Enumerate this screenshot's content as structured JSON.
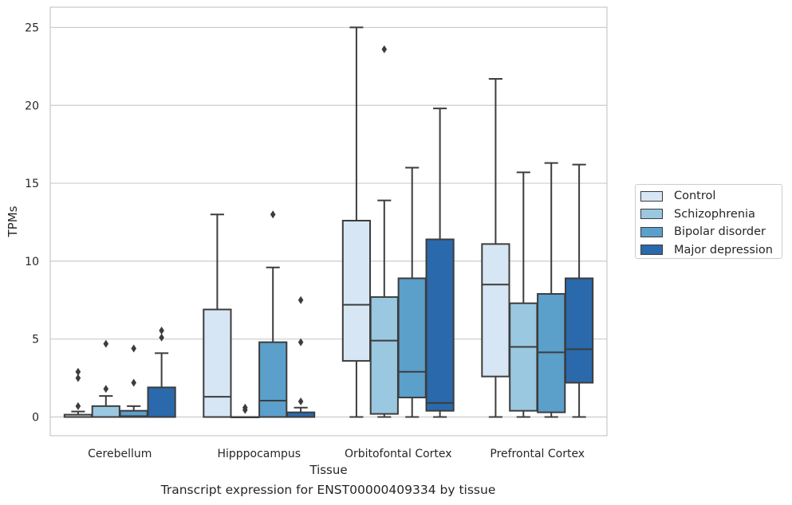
{
  "chart_data": {
    "type": "boxplot",
    "caption": "Transcript expression for ENST00000409334 by tissue",
    "xlabel": "Tissue",
    "ylabel": "TPMs",
    "ylim": [
      -1.2,
      26.3
    ],
    "yticks": [
      0,
      5,
      10,
      15,
      20,
      25
    ],
    "grid": "horizontal",
    "legend_position": "right",
    "categories": [
      "Cerebellum",
      "Hipppocampus",
      "Orbitofontal Cortex",
      "Prefrontal Cortex"
    ],
    "series": [
      {
        "name": "Control",
        "color": "#d6e6f4",
        "boxes": [
          {
            "whislo": 0,
            "q1": 0,
            "med": 0,
            "q3": 0.15,
            "whishi": 0.35,
            "fliers": [
              0.7,
              2.5,
              2.9
            ]
          },
          {
            "whislo": 0,
            "q1": 0,
            "med": 1.3,
            "q3": 6.9,
            "whishi": 13.0,
            "fliers": []
          },
          {
            "whislo": 0,
            "q1": 3.6,
            "med": 7.2,
            "q3": 12.6,
            "whishi": 25.0,
            "fliers": []
          },
          {
            "whislo": 0,
            "q1": 2.6,
            "med": 8.5,
            "q3": 11.1,
            "whishi": 21.7,
            "fliers": []
          }
        ]
      },
      {
        "name": "Schizophrenia",
        "color": "#9ac8e0",
        "boxes": [
          {
            "whislo": 0,
            "q1": 0,
            "med": 0,
            "q3": 0.7,
            "whishi": 1.35,
            "fliers": [
              1.8,
              4.7
            ]
          },
          {
            "whislo": 0,
            "q1": 0,
            "med": 0,
            "q3": 0,
            "whishi": 0,
            "fliers": [
              0.45,
              0.6
            ]
          },
          {
            "whislo": 0,
            "q1": 0.2,
            "med": 4.9,
            "q3": 7.7,
            "whishi": 13.9,
            "fliers": [
              23.6
            ]
          },
          {
            "whislo": 0,
            "q1": 0.4,
            "med": 4.5,
            "q3": 7.3,
            "whishi": 15.7,
            "fliers": []
          }
        ]
      },
      {
        "name": "Bipolar disorder",
        "color": "#5b9fcb",
        "boxes": [
          {
            "whislo": 0,
            "q1": 0,
            "med": 0.05,
            "q3": 0.4,
            "whishi": 0.7,
            "fliers": [
              2.2,
              4.4
            ]
          },
          {
            "whislo": 0,
            "q1": 0,
            "med": 1.05,
            "q3": 4.8,
            "whishi": 9.6,
            "fliers": [
              13.0
            ]
          },
          {
            "whislo": 0,
            "q1": 1.25,
            "med": 2.9,
            "q3": 8.9,
            "whishi": 16.0,
            "fliers": []
          },
          {
            "whislo": 0,
            "q1": 0.3,
            "med": 4.15,
            "q3": 7.9,
            "whishi": 16.3,
            "fliers": []
          }
        ]
      },
      {
        "name": "Major depression",
        "color": "#2a69ab",
        "boxes": [
          {
            "whislo": 0,
            "q1": 0,
            "med": 0,
            "q3": 1.9,
            "whishi": 4.1,
            "fliers": [
              5.1,
              5.55
            ]
          },
          {
            "whislo": 0,
            "q1": 0,
            "med": 0,
            "q3": 0.3,
            "whishi": 0.6,
            "fliers": [
              1.0,
              4.8,
              7.5
            ]
          },
          {
            "whislo": 0,
            "q1": 0.4,
            "med": 0.9,
            "q3": 11.4,
            "whishi": 19.8,
            "fliers": []
          },
          {
            "whislo": 0,
            "q1": 2.2,
            "med": 4.35,
            "q3": 8.9,
            "whishi": 16.2,
            "fliers": []
          }
        ]
      }
    ]
  }
}
